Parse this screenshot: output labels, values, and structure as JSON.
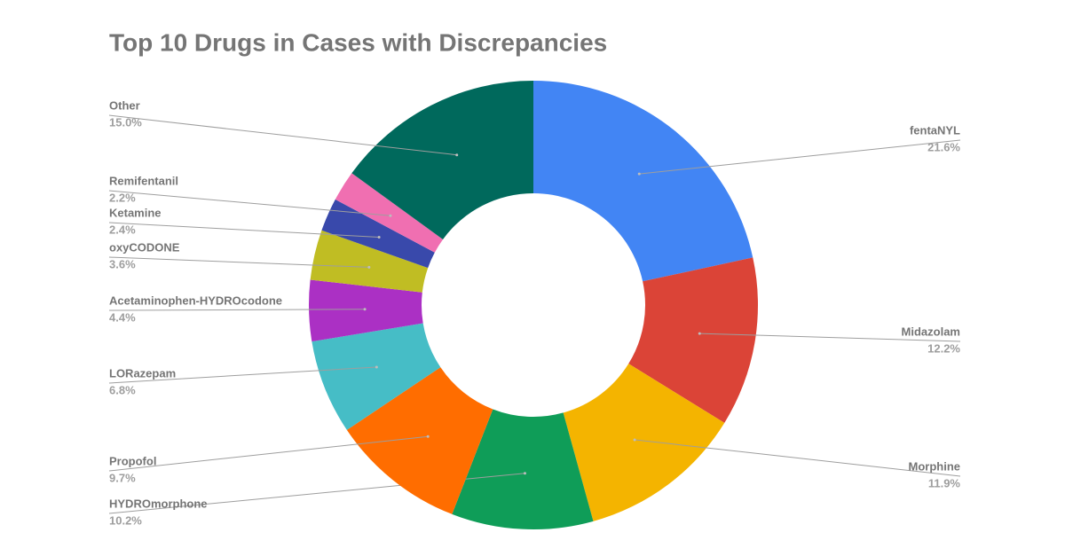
{
  "chart_data": {
    "type": "donut",
    "title": "Top 10 Drugs in Cases with Discrepancies",
    "categories": [
      "fentaNYL",
      "Midazolam",
      "Morphine",
      "HYDROmorphone",
      "Propofol",
      "LORazepam",
      "Acetaminophen-HYDROcodone",
      "oxyCODONE",
      "Ketamine",
      "Remifentanil",
      "Other"
    ],
    "values": [
      21.6,
      12.2,
      11.9,
      10.2,
      9.7,
      6.8,
      4.4,
      3.6,
      2.4,
      2.2,
      15.0
    ],
    "value_labels": [
      "21.6%",
      "12.2%",
      "11.9%",
      "10.2%",
      "9.7%",
      "6.8%",
      "4.4%",
      "3.6%",
      "2.4%",
      "2.2%",
      "15.0%"
    ],
    "colors": [
      "#4285f4",
      "#db4437",
      "#f4b400",
      "#0f9d58",
      "#ff6d00",
      "#46bdc6",
      "#ab30c4",
      "#c0bd23",
      "#3949ab",
      "#f06fb1",
      "#00695c"
    ]
  }
}
